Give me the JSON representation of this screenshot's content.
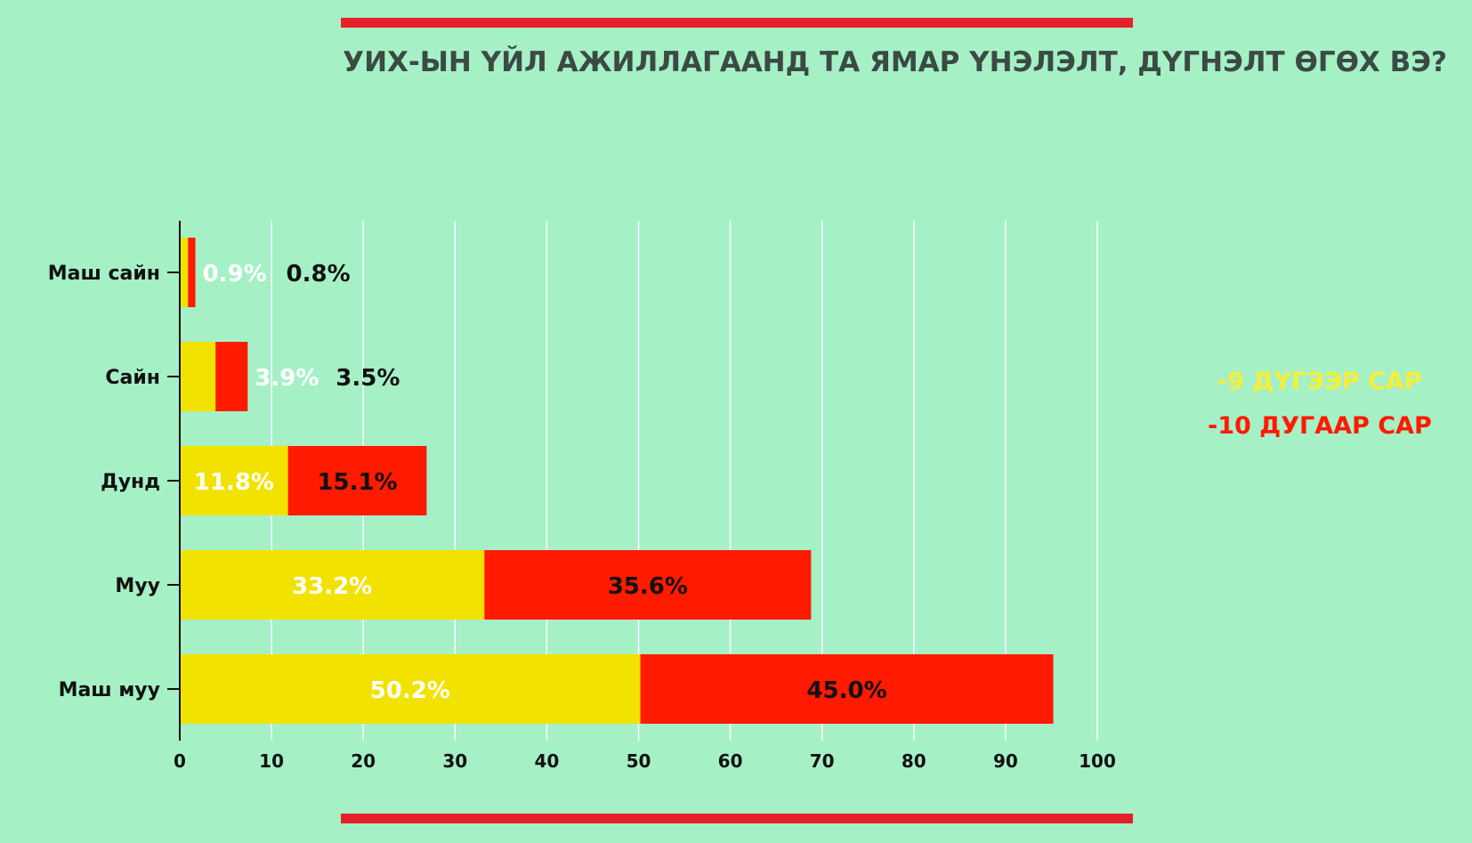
{
  "title": "УИХ-ЫН ҮЙЛ АЖИЛЛАГААНД ТА ЯМАР ҮНЭЛЭЛТ, ДҮГНЭЛТ ӨГӨХ ВЭ?",
  "colors": {
    "background": "#a6f0c6",
    "rule": "#e8202a"
  },
  "chart_data": {
    "type": "bar",
    "stacked": true,
    "orientation": "horizontal",
    "categories": [
      "Маш сайн",
      "Сайн",
      "Дунд",
      "Муу",
      "Маш муу"
    ],
    "series": [
      {
        "name": "-9 ДҮГЭЭР САР",
        "color": "#f2e200",
        "label_color": "#ffffff",
        "values": [
          0.9,
          3.9,
          11.8,
          33.2,
          50.2
        ],
        "labels": [
          "0.9%",
          "3.9%",
          "11.8%",
          "33.2%",
          "50.2%"
        ]
      },
      {
        "name": "-10 ДУГААР САР",
        "color": "#ff1a00",
        "label_color": "#111111",
        "values": [
          0.8,
          3.5,
          15.1,
          35.6,
          45.0
        ],
        "labels": [
          "0.8%",
          "3.5%",
          "15.1%",
          "35.6%",
          "45.0%"
        ]
      }
    ],
    "x_ticks": [
      0,
      10,
      20,
      30,
      40,
      50,
      60,
      70,
      80,
      90,
      100
    ],
    "xlim": [
      0,
      100
    ],
    "grid": true,
    "legend_position": "right",
    "xlabel": "",
    "ylabel": ""
  }
}
